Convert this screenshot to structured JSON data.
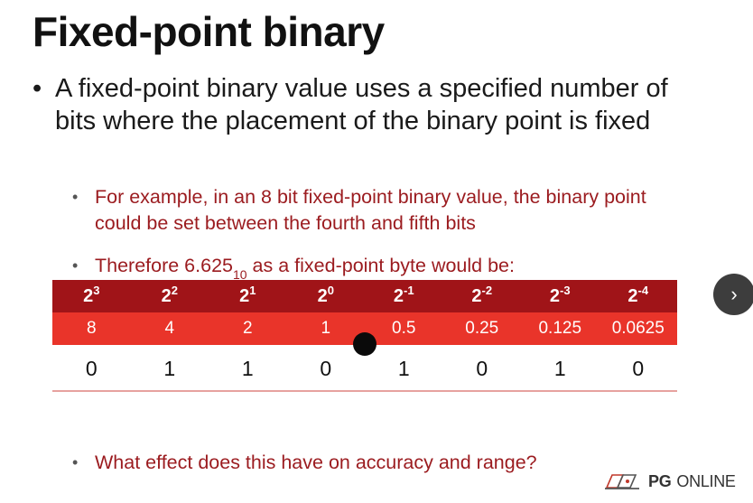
{
  "title": "Fixed-point binary",
  "bullet_main": {
    "dot": "•",
    "text": "A fixed-point binary value uses a specified number of bits where the placement of the binary point is fixed"
  },
  "sub_bullets": [
    {
      "dot": "•",
      "text": "For example, in an 8 bit fixed-point binary value, the binary point could be set between the fourth and fifth bits"
    },
    {
      "dot": "•",
      "text_before": "Therefore 6.625",
      "subscript": "10",
      "text_after": " as a fixed-point byte would be:"
    },
    {
      "dot": "•",
      "text": "What effect does this have on accuracy and range?"
    }
  ],
  "table": {
    "powers": [
      {
        "base": "2",
        "exp": "3"
      },
      {
        "base": "2",
        "exp": "2"
      },
      {
        "base": "2",
        "exp": "1"
      },
      {
        "base": "2",
        "exp": "0"
      },
      {
        "base": "2",
        "exp": "-1"
      },
      {
        "base": "2",
        "exp": "-2"
      },
      {
        "base": "2",
        "exp": "-3"
      },
      {
        "base": "2",
        "exp": "-4"
      }
    ],
    "values": [
      "8",
      "4",
      "2",
      "1",
      "0.5",
      "0.25",
      "0.125",
      "0.0625"
    ],
    "bits": [
      "0",
      "1",
      "1",
      "0",
      "1",
      "0",
      "1",
      "0"
    ]
  },
  "nav": {
    "next_glyph": "›"
  },
  "logo": {
    "pg": "PG",
    "online": "ONLINE"
  },
  "colors": {
    "header_dark": "#a01418",
    "header_light": "#e9342a",
    "sub_text": "#9b1b1f"
  }
}
